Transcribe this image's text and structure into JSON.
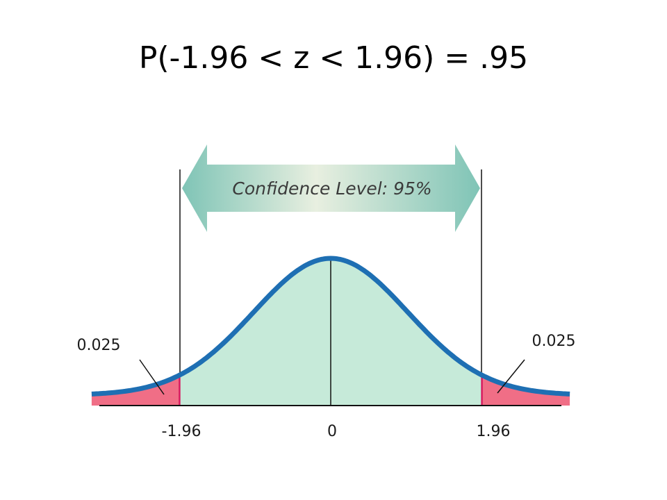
{
  "title": "P(-1.96 < z < 1.96) = .95",
  "diagram": {
    "confidence_label": "Confidence Level: 95%",
    "tail_left_label": "0.025",
    "tail_right_label": "0.025",
    "tick_labels": {
      "left": "-1.96",
      "center": "0",
      "right": "1.96"
    },
    "colors": {
      "curve": "#1e6fb3",
      "center_fill": "#c6ead9",
      "tail_fill": "#f06e86",
      "arrow_light": "#e8efe0",
      "arrow_dark": "#7fc4b6"
    }
  },
  "chart_data": {
    "type": "area",
    "distribution": "standard normal",
    "xlim": [
      -3.1,
      3.1
    ],
    "critical_values": [
      -1.96,
      1.96
    ],
    "center": 0,
    "central_area": 0.95,
    "tail_areas": [
      0.025,
      0.025
    ],
    "tick_labels": [
      "-1.96",
      "0",
      "1.96"
    ],
    "annotations": [
      "Confidence Level: 95%",
      "0.025",
      "0.025"
    ],
    "grid": false
  }
}
